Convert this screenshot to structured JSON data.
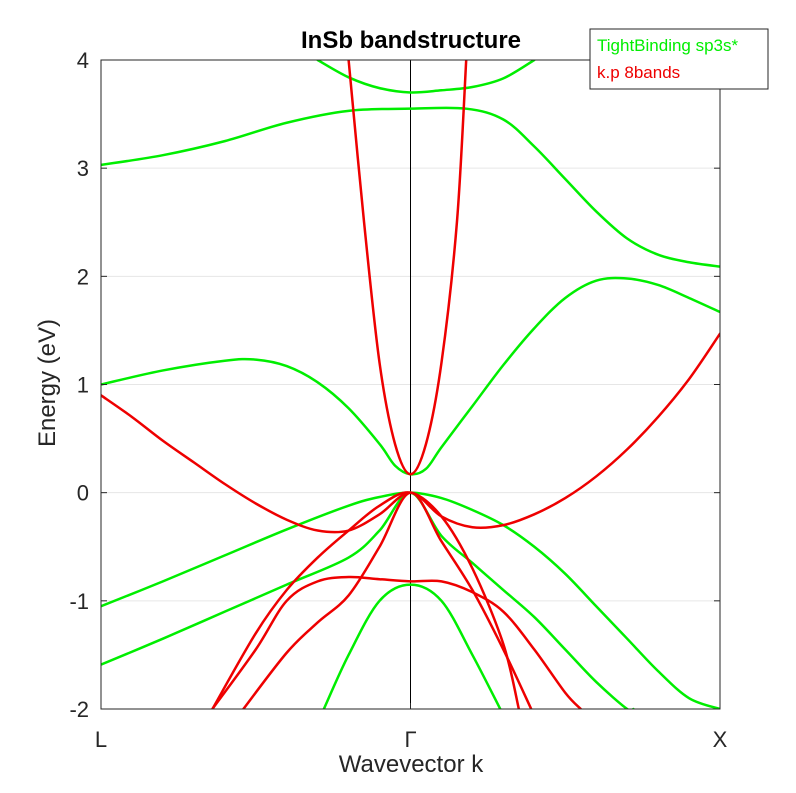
{
  "chart_data": {
    "type": "line",
    "title": "InSb bandstructure",
    "xlabel": "Wavevector k",
    "ylabel": "Energy (eV)",
    "xlim": [
      -1,
      1
    ],
    "ylim": [
      -2,
      4
    ],
    "yticks": [
      {
        "value": -2,
        "label": "-2"
      },
      {
        "value": -1,
        "label": "-1"
      },
      {
        "value": 0,
        "label": "0"
      },
      {
        "value": 1,
        "label": "1"
      },
      {
        "value": 2,
        "label": "2"
      },
      {
        "value": 3,
        "label": "3"
      },
      {
        "value": 4,
        "label": "4"
      }
    ],
    "xticks": [
      {
        "value": -1,
        "label": "L"
      },
      {
        "value": 0,
        "label": "Γ"
      },
      {
        "value": 1,
        "label": "X"
      }
    ],
    "grid": "horizontal",
    "legend": {
      "position": "top-right",
      "entries": [
        {
          "label": "TightBinding sp3s*",
          "color": "#00ee00"
        },
        {
          "label": "k.p 8bands",
          "color": "#ee0000"
        }
      ]
    },
    "series": [
      {
        "group": "TightBinding sp3s*",
        "color": "#00ee00",
        "x": [
          -0.3,
          -0.2,
          -0.1,
          0.0,
          0.1,
          0.2,
          0.3,
          0.4
        ],
        "y": [
          4.0,
          3.84,
          3.74,
          3.7,
          3.72,
          3.75,
          3.83,
          4.0
        ]
      },
      {
        "group": "TightBinding sp3s*",
        "color": "#00ee00",
        "x": [
          -1.0,
          -0.8,
          -0.6,
          -0.4,
          -0.2,
          0.0,
          0.18,
          0.3,
          0.4,
          0.5,
          0.6,
          0.7,
          0.8,
          0.9,
          1.0
        ],
        "y": [
          3.03,
          3.12,
          3.25,
          3.42,
          3.53,
          3.55,
          3.55,
          3.45,
          3.2,
          2.9,
          2.6,
          2.35,
          2.2,
          2.13,
          2.09
        ]
      },
      {
        "group": "TightBinding sp3s*",
        "color": "#00ee00",
        "x": [
          -1.0,
          -0.8,
          -0.6,
          -0.5,
          -0.4,
          -0.3,
          -0.2,
          -0.1,
          -0.05,
          0.0,
          0.05,
          0.1,
          0.2,
          0.3,
          0.4,
          0.5,
          0.6,
          0.7,
          0.8,
          0.9,
          1.0
        ],
        "y": [
          1.0,
          1.13,
          1.22,
          1.23,
          1.17,
          1.02,
          0.78,
          0.45,
          0.25,
          0.17,
          0.22,
          0.42,
          0.8,
          1.18,
          1.52,
          1.8,
          1.96,
          1.98,
          1.92,
          1.8,
          1.67
        ]
      },
      {
        "group": "TightBinding sp3s*",
        "color": "#00ee00",
        "x": [
          -1.0,
          -0.8,
          -0.6,
          -0.4,
          -0.2,
          -0.1,
          0.0,
          0.1,
          0.2,
          0.3,
          0.4,
          0.5,
          0.6,
          0.7,
          0.8,
          0.9,
          1.0
        ],
        "y": [
          -1.05,
          -0.82,
          -0.58,
          -0.34,
          -0.12,
          -0.04,
          0.0,
          -0.05,
          -0.16,
          -0.3,
          -0.5,
          -0.75,
          -1.05,
          -1.35,
          -1.65,
          -1.9,
          -2.0
        ]
      },
      {
        "group": "TightBinding sp3s*",
        "color": "#00ee00",
        "x": [
          -1.0,
          -0.8,
          -0.6,
          -0.4,
          -0.2,
          -0.1,
          0.0,
          0.1,
          0.2,
          0.3,
          0.4,
          0.5,
          0.6,
          0.7,
          0.72
        ],
        "y": [
          -1.59,
          -1.35,
          -1.1,
          -0.85,
          -0.6,
          -0.35,
          0.0,
          -0.4,
          -0.65,
          -0.9,
          -1.15,
          -1.45,
          -1.75,
          -2.0,
          -2.0
        ]
      },
      {
        "group": "TightBinding sp3s*",
        "color": "#00ee00",
        "x": [
          -0.28,
          -0.2,
          -0.1,
          0.0,
          0.1,
          0.2,
          0.29
        ],
        "y": [
          -2.0,
          -1.5,
          -1.0,
          -0.85,
          -1.0,
          -1.5,
          -2.0
        ]
      },
      {
        "group": "k.p 8bands",
        "color": "#ee0000",
        "x": [
          -0.2,
          -0.15,
          -0.1,
          -0.05,
          0.0,
          0.05,
          0.1,
          0.15,
          0.18
        ],
        "y": [
          4.0,
          2.5,
          1.2,
          0.45,
          0.17,
          0.45,
          1.2,
          2.5,
          4.0
        ]
      },
      {
        "group": "k.p 8bands",
        "color": "#ee0000",
        "x": [
          -1.0,
          -0.9,
          -0.8,
          -0.7,
          -0.6,
          -0.5,
          -0.4,
          -0.3,
          -0.2,
          -0.1,
          0.0,
          0.1,
          0.2,
          0.3,
          0.4,
          0.5,
          0.6,
          0.7,
          0.8,
          0.9,
          1.0
        ],
        "y": [
          0.9,
          0.7,
          0.48,
          0.28,
          0.08,
          -0.1,
          -0.25,
          -0.35,
          -0.35,
          -0.2,
          0.0,
          -0.22,
          -0.32,
          -0.3,
          -0.2,
          -0.05,
          0.15,
          0.4,
          0.7,
          1.05,
          1.47
        ]
      },
      {
        "group": "k.p 8bands",
        "color": "#ee0000",
        "x": [
          -0.64,
          -0.5,
          -0.4,
          -0.3,
          -0.2,
          -0.1,
          0.0,
          0.1,
          0.2,
          0.3,
          0.35
        ],
        "y": [
          -2.0,
          -1.3,
          -0.9,
          -0.6,
          -0.35,
          -0.12,
          0.0,
          -0.22,
          -0.7,
          -1.4,
          -2.0
        ]
      },
      {
        "group": "k.p 8bands",
        "color": "#ee0000",
        "x": [
          -0.54,
          -0.4,
          -0.3,
          -0.2,
          -0.1,
          0.0,
          0.1,
          0.2,
          0.3,
          0.39
        ],
        "y": [
          -2.0,
          -1.48,
          -1.2,
          -0.95,
          -0.5,
          0.0,
          -0.45,
          -0.9,
          -1.45,
          -2.0
        ]
      },
      {
        "group": "k.p 8bands",
        "color": "#ee0000",
        "x": [
          -0.64,
          -0.5,
          -0.4,
          -0.3,
          -0.2,
          -0.1,
          0.0,
          0.1,
          0.2,
          0.3,
          0.4,
          0.5,
          0.55
        ],
        "y": [
          -2.0,
          -1.45,
          -1.0,
          -0.82,
          -0.78,
          -0.8,
          -0.82,
          -0.82,
          -0.92,
          -1.1,
          -1.45,
          -1.85,
          -2.0
        ]
      }
    ]
  }
}
